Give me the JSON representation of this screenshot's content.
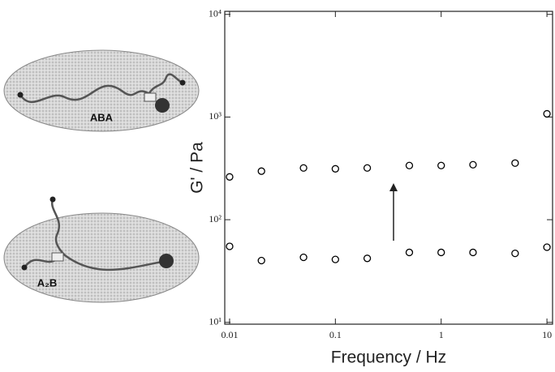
{
  "chart_data": {
    "type": "scatter",
    "x_label": "Frequency / Hz",
    "y_label": "G' / Pa",
    "x": [
      0.01,
      0.02,
      0.05,
      0.1,
      0.2,
      0.5,
      1,
      2,
      5,
      10
    ],
    "series": [
      {
        "color": "#000000",
        "values": [
          261,
          297,
          319,
          313,
          319,
          337,
          337,
          343,
          356,
          1075
        ]
      },
      {
        "color": "#000000",
        "values": [
          55,
          40,
          43,
          41,
          42,
          48,
          48,
          48,
          47,
          54
        ]
      }
    ],
    "xlim": [
      0.009,
      11.3
    ],
    "ylim": [
      9.6,
      10700
    ],
    "xticks": [
      0.01,
      0.1,
      1,
      10
    ],
    "yticks": [
      {
        "value": 10,
        "label": "10¹"
      },
      {
        "value": 100,
        "label": "10²"
      },
      {
        "value": 1000,
        "label": "10³"
      },
      {
        "value": 10000,
        "label": "10⁴"
      }
    ],
    "xscale": "log",
    "yscale": "log"
  },
  "diagram_labels": [
    "ABA",
    "A₂B"
  ]
}
